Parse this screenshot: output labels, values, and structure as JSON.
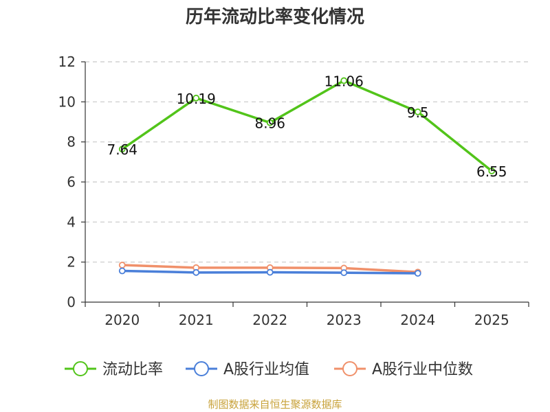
{
  "chart_data": {
    "type": "line",
    "title": "历年流动比率变化情况",
    "categories": [
      "2020",
      "2021",
      "2022",
      "2023",
      "2024",
      "2025"
    ],
    "ylim": [
      0,
      12
    ],
    "yticks": [
      "0",
      "2",
      "4",
      "6",
      "8",
      "10",
      "12"
    ],
    "grid": "horizontal-dashed",
    "legend_position": "bottom",
    "series": [
      {
        "name": "流动比率",
        "color": "#52c41a",
        "values": [
          7.64,
          10.19,
          8.96,
          11.06,
          9.5,
          6.55
        ],
        "labels": [
          "7.64",
          "10.19",
          "8.96",
          "11.06",
          "9.5",
          "6.55"
        ]
      },
      {
        "name": "A股行业均值",
        "color": "#4a7fd9",
        "values": [
          1.56,
          1.48,
          1.49,
          1.47,
          1.44,
          null
        ]
      },
      {
        "name": "A股行业中位数",
        "color": "#f0906a",
        "values": [
          1.85,
          1.72,
          1.72,
          1.7,
          1.5,
          null
        ]
      }
    ],
    "source": "制图数据来自恒生聚源数据库"
  }
}
